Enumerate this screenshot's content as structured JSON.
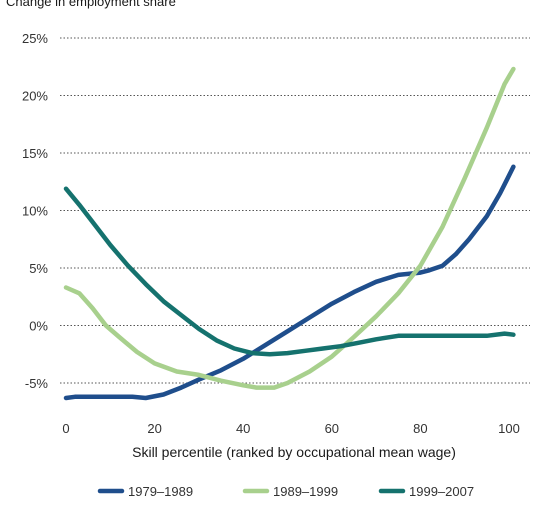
{
  "chart_data": {
    "type": "line",
    "title": "",
    "ylabel": "Change in employment share",
    "xlabel": "Skill percentile (ranked by occupational mean wage)",
    "xlim": [
      0,
      102
    ],
    "ylim": [
      -7,
      25
    ],
    "xticks": [
      0,
      20,
      40,
      60,
      80,
      100
    ],
    "yticks": [
      25,
      20,
      15,
      10,
      5,
      0,
      -5
    ],
    "ytick_labels": [
      "25%",
      "20%",
      "15%",
      "10%",
      "5%",
      "0%",
      "-5%"
    ],
    "grid": "dotted horizontal",
    "legend_position": "bottom",
    "series": [
      {
        "name": "1979–1989",
        "color": "#1f4e8c",
        "points": [
          [
            0,
            -6.3
          ],
          [
            2,
            -6.2
          ],
          [
            5,
            -6.2
          ],
          [
            10,
            -6.2
          ],
          [
            15,
            -6.2
          ],
          [
            18,
            -6.3
          ],
          [
            22,
            -6.0
          ],
          [
            26,
            -5.4
          ],
          [
            30,
            -4.7
          ],
          [
            35,
            -3.9
          ],
          [
            40,
            -2.9
          ],
          [
            45,
            -1.7
          ],
          [
            50,
            -0.5
          ],
          [
            55,
            0.7
          ],
          [
            60,
            1.9
          ],
          [
            65,
            2.9
          ],
          [
            70,
            3.8
          ],
          [
            75,
            4.4
          ],
          [
            80,
            4.6
          ],
          [
            82,
            4.8
          ],
          [
            85,
            5.2
          ],
          [
            88,
            6.2
          ],
          [
            91,
            7.5
          ],
          [
            95,
            9.5
          ],
          [
            98,
            11.5
          ],
          [
            101,
            13.8
          ]
        ]
      },
      {
        "name": "1989–1999",
        "color": "#a8d08d",
        "points": [
          [
            0,
            3.3
          ],
          [
            3,
            2.8
          ],
          [
            6,
            1.5
          ],
          [
            9,
            0.0
          ],
          [
            12,
            -1.0
          ],
          [
            16,
            -2.3
          ],
          [
            20,
            -3.3
          ],
          [
            25,
            -4.0
          ],
          [
            30,
            -4.3
          ],
          [
            35,
            -4.8
          ],
          [
            40,
            -5.2
          ],
          [
            43,
            -5.4
          ],
          [
            47,
            -5.4
          ],
          [
            50,
            -5.0
          ],
          [
            55,
            -4.0
          ],
          [
            60,
            -2.7
          ],
          [
            65,
            -1.0
          ],
          [
            70,
            0.8
          ],
          [
            75,
            2.8
          ],
          [
            80,
            5.2
          ],
          [
            85,
            8.6
          ],
          [
            90,
            12.8
          ],
          [
            95,
            17.2
          ],
          [
            99,
            21.0
          ],
          [
            101,
            22.3
          ]
        ]
      },
      {
        "name": "1999–2007",
        "color": "#15726e",
        "points": [
          [
            0,
            11.9
          ],
          [
            3,
            10.5
          ],
          [
            6,
            9.0
          ],
          [
            10,
            7.0
          ],
          [
            14,
            5.2
          ],
          [
            18,
            3.6
          ],
          [
            22,
            2.1
          ],
          [
            26,
            0.9
          ],
          [
            30,
            -0.3
          ],
          [
            34,
            -1.3
          ],
          [
            38,
            -2.0
          ],
          [
            42,
            -2.4
          ],
          [
            46,
            -2.5
          ],
          [
            50,
            -2.4
          ],
          [
            54,
            -2.2
          ],
          [
            58,
            -2.0
          ],
          [
            62,
            -1.8
          ],
          [
            66,
            -1.5
          ],
          [
            70,
            -1.2
          ],
          [
            75,
            -0.9
          ],
          [
            80,
            -0.9
          ],
          [
            90,
            -0.9
          ],
          [
            95,
            -0.9
          ],
          [
            99,
            -0.7
          ],
          [
            101,
            -0.8
          ]
        ]
      }
    ]
  }
}
